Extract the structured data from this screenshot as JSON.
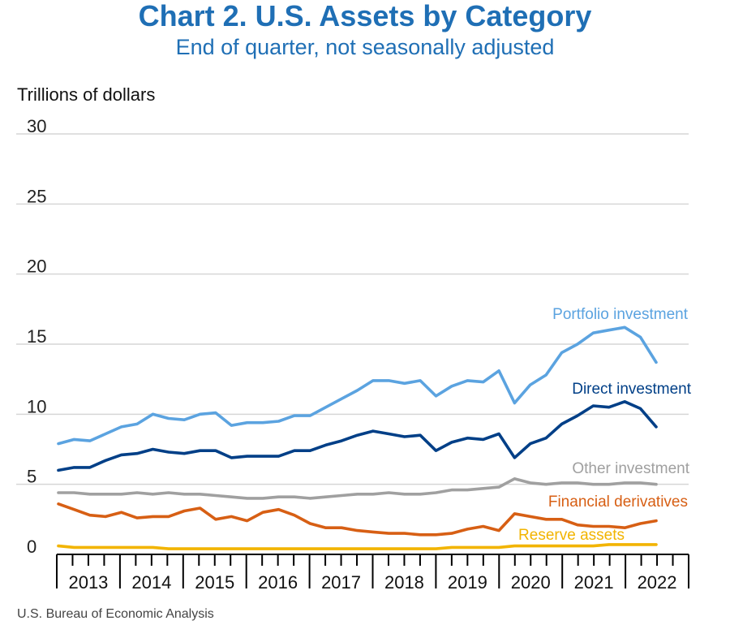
{
  "title": "Chart 2. U.S. Assets by Category",
  "subtitle": "End of quarter, not seasonally adjusted",
  "units_label": "Trillions of dollars",
  "source": "U.S. Bureau of Economic Analysis",
  "colors": {
    "title": "#1f6fb5",
    "grid": "#d6d6d6",
    "axis": "#000000"
  },
  "chart_data": {
    "type": "line",
    "ylim": [
      0,
      30
    ],
    "yticks": [
      "0",
      "5",
      "10",
      "15",
      "20",
      "25",
      "30"
    ],
    "grid": true,
    "x_labels": [
      "2013",
      "2014",
      "2015",
      "2016",
      "2017",
      "2018",
      "2019",
      "2020",
      "2021",
      "2022"
    ],
    "x_unit": "quarter",
    "series": [
      {
        "name": "Portfolio investment",
        "color": "#5ba3e0",
        "values": [
          7.9,
          8.2,
          8.1,
          8.6,
          9.1,
          9.3,
          10.0,
          9.7,
          9.6,
          10.0,
          10.1,
          9.2,
          9.4,
          9.4,
          9.5,
          9.9,
          9.9,
          10.5,
          11.1,
          11.7,
          12.4,
          12.4,
          12.2,
          12.4,
          11.3,
          12.0,
          12.4,
          12.3,
          13.1,
          10.8,
          12.1,
          12.8,
          14.4,
          15.0,
          15.8,
          16.0,
          16.2,
          15.5,
          13.7
        ]
      },
      {
        "name": "Direct investment",
        "color": "#003f87",
        "values": [
          6.0,
          6.2,
          6.2,
          6.7,
          7.1,
          7.2,
          7.5,
          7.3,
          7.2,
          7.4,
          7.4,
          6.9,
          7.0,
          7.0,
          7.0,
          7.4,
          7.4,
          7.8,
          8.1,
          8.5,
          8.8,
          8.6,
          8.4,
          8.5,
          7.4,
          8.0,
          8.3,
          8.2,
          8.6,
          6.9,
          7.9,
          8.3,
          9.3,
          9.9,
          10.6,
          10.5,
          10.9,
          10.4,
          9.1
        ]
      },
      {
        "name": "Other investment",
        "color": "#a0a0a0",
        "values": [
          4.4,
          4.4,
          4.3,
          4.3,
          4.3,
          4.4,
          4.3,
          4.4,
          4.3,
          4.3,
          4.2,
          4.1,
          4.0,
          4.0,
          4.1,
          4.1,
          4.0,
          4.1,
          4.2,
          4.3,
          4.3,
          4.4,
          4.3,
          4.3,
          4.4,
          4.6,
          4.6,
          4.7,
          4.8,
          5.4,
          5.1,
          5.0,
          5.1,
          5.1,
          5.0,
          5.0,
          5.1,
          5.1,
          5.0
        ]
      },
      {
        "name": "Financial derivatives",
        "color": "#d75f14",
        "values": [
          3.6,
          3.2,
          2.8,
          2.7,
          3.0,
          2.6,
          2.7,
          2.7,
          3.1,
          3.3,
          2.5,
          2.7,
          2.4,
          3.0,
          3.2,
          2.8,
          2.2,
          1.9,
          1.9,
          1.7,
          1.6,
          1.5,
          1.5,
          1.4,
          1.4,
          1.5,
          1.8,
          2.0,
          1.7,
          2.9,
          2.7,
          2.5,
          2.5,
          2.1,
          2.0,
          2.0,
          1.9,
          2.2,
          2.4
        ]
      },
      {
        "name": "Reserve assets",
        "color": "#f2b400",
        "values": [
          0.6,
          0.5,
          0.5,
          0.5,
          0.5,
          0.5,
          0.5,
          0.4,
          0.4,
          0.4,
          0.4,
          0.4,
          0.4,
          0.4,
          0.4,
          0.4,
          0.4,
          0.4,
          0.4,
          0.4,
          0.4,
          0.4,
          0.4,
          0.4,
          0.4,
          0.5,
          0.5,
          0.5,
          0.5,
          0.6,
          0.6,
          0.6,
          0.6,
          0.6,
          0.6,
          0.7,
          0.7,
          0.7,
          0.7
        ]
      }
    ]
  }
}
